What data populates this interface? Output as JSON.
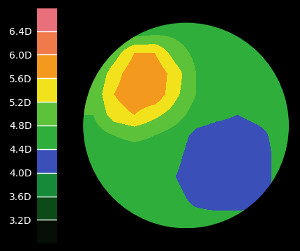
{
  "chart_data": {
    "type": "heatmap",
    "tick_labels": false,
    "cells": [
      [
        4.6,
        4.6,
        4.6,
        4.7,
        4.7,
        4.6,
        4.6,
        4.6,
        4.6,
        4.6
      ],
      [
        4.7,
        5.0,
        5.6,
        5.6,
        5.0,
        4.7,
        4.6,
        4.6,
        4.6,
        4.6
      ],
      [
        4.8,
        5.4,
        5.9,
        5.9,
        5.4,
        4.8,
        4.6,
        4.6,
        4.6,
        4.6
      ],
      [
        4.9,
        5.6,
        5.9,
        5.9,
        5.3,
        4.8,
        4.6,
        4.5,
        4.5,
        4.5
      ],
      [
        4.8,
        5.4,
        5.6,
        5.3,
        5.0,
        4.6,
        4.5,
        4.4,
        4.5,
        4.5
      ],
      [
        4.6,
        4.8,
        4.9,
        4.8,
        4.6,
        4.3,
        4.2,
        4.2,
        4.3,
        4.5
      ],
      [
        4.5,
        4.6,
        4.6,
        4.6,
        4.5,
        4.2,
        4.1,
        4.1,
        4.2,
        4.5
      ],
      [
        4.5,
        4.5,
        4.5,
        4.6,
        4.4,
        4.2,
        4.1,
        4.1,
        4.2,
        4.5
      ],
      [
        4.5,
        4.5,
        4.5,
        4.5,
        4.5,
        4.3,
        4.2,
        4.2,
        4.3,
        4.5
      ],
      [
        4.5,
        4.5,
        4.5,
        4.5,
        4.5,
        4.5,
        4.5,
        4.5,
        4.5,
        4.5
      ]
    ],
    "colorbar": {
      "range": [
        2.8,
        6.8
      ],
      "ticks": [
        {
          "value": 3.2,
          "label": "3.2D"
        },
        {
          "value": 3.6,
          "label": "3.6D"
        },
        {
          "value": 4.0,
          "label": "4.0D"
        },
        {
          "value": 4.4,
          "label": "4.4D"
        },
        {
          "value": 4.8,
          "label": "4.8D"
        },
        {
          "value": 5.2,
          "label": "5.2D"
        },
        {
          "value": 5.6,
          "label": "5.6D"
        },
        {
          "value": 6.0,
          "label": "6.0D"
        },
        {
          "value": 6.4,
          "label": "6.4D"
        }
      ],
      "colors": [
        "#050f05",
        "#0c4a18",
        "#178a3a",
        "#3a4fb8",
        "#2fae3c",
        "#5cc23a",
        "#f2e21c",
        "#f39a1e",
        "#f07a4a",
        "#e8707a"
      ]
    }
  }
}
